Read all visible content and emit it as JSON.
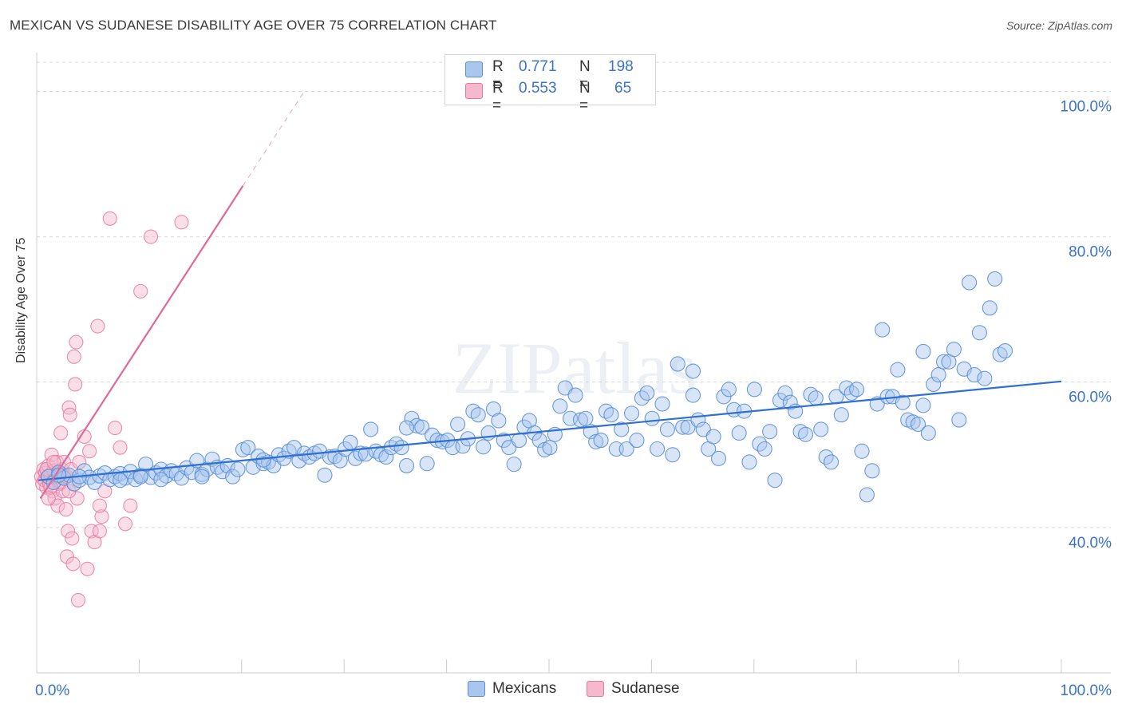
{
  "title": "MEXICAN VS SUDANESE DISABILITY AGE OVER 75 CORRELATION CHART",
  "source": "Source: ZipAtlas.com",
  "colors": {
    "blue": "#5b8fd6",
    "blue_fill": "#a9c6ee",
    "blue_line": "#2f6fd0",
    "pink": "#e879a2",
    "pink_fill": "#f5b8cd",
    "pink_line": "#e0689a",
    "axis_text": "#3b73c8",
    "grid": "#d9d9d9"
  },
  "legend": {
    "rows": [
      {
        "r_label": "R =",
        "r_value": "0.771",
        "n_label": "N =",
        "n_value": "198"
      },
      {
        "r_label": "R =",
        "r_value": "0.553",
        "n_label": "N =",
        "n_value": "65"
      }
    ]
  },
  "bottom_legend": [
    "Mexicans",
    "Sudanese"
  ],
  "watermark": "ZIPatlas",
  "chart_data": {
    "type": "scatter",
    "title": "MEXICAN VS SUDANESE DISABILITY AGE OVER 75 CORRELATION CHART",
    "xlabel": "",
    "ylabel": "Disability Age Over 75",
    "xlim": [
      0,
      1
    ],
    "ylim": [
      0.2,
      1.04
    ],
    "x_tick_labels": [
      "0.0%",
      "100.0%"
    ],
    "y_ticks": [
      0.4,
      0.6,
      0.8,
      1.0
    ],
    "y_tick_labels": [
      "40.0%",
      "60.0%",
      "80.0%",
      "100.0%"
    ],
    "grid": true,
    "series": [
      {
        "name": "Mexicans",
        "r": 0.771,
        "n": 198,
        "trend": {
          "x": [
            0.0,
            1.0
          ],
          "y": [
            0.465,
            0.601
          ]
        },
        "points": [
          [
            0.01,
            0.47
          ],
          [
            0.015,
            0.462
          ],
          [
            0.02,
            0.476
          ],
          [
            0.025,
            0.468
          ],
          [
            0.03,
            0.472
          ],
          [
            0.035,
            0.46
          ],
          [
            0.04,
            0.465
          ],
          [
            0.045,
            0.478
          ],
          [
            0.05,
            0.469
          ],
          [
            0.055,
            0.462
          ],
          [
            0.06,
            0.471
          ],
          [
            0.065,
            0.475
          ],
          [
            0.07,
            0.466
          ],
          [
            0.075,
            0.47
          ],
          [
            0.08,
            0.474
          ],
          [
            0.085,
            0.468
          ],
          [
            0.09,
            0.477
          ],
          [
            0.095,
            0.466
          ],
          [
            0.1,
            0.472
          ],
          [
            0.105,
            0.487
          ],
          [
            0.11,
            0.469
          ],
          [
            0.115,
            0.475
          ],
          [
            0.12,
            0.48
          ],
          [
            0.125,
            0.471
          ],
          [
            0.13,
            0.478
          ],
          [
            0.135,
            0.474
          ],
          [
            0.14,
            0.468
          ],
          [
            0.145,
            0.482
          ],
          [
            0.15,
            0.476
          ],
          [
            0.155,
            0.492
          ],
          [
            0.16,
            0.473
          ],
          [
            0.165,
            0.48
          ],
          [
            0.17,
            0.494
          ],
          [
            0.175,
            0.483
          ],
          [
            0.18,
            0.477
          ],
          [
            0.185,
            0.485
          ],
          [
            0.19,
            0.47
          ],
          [
            0.195,
            0.48
          ],
          [
            0.2,
            0.507
          ],
          [
            0.205,
            0.51
          ],
          [
            0.21,
            0.483
          ],
          [
            0.215,
            0.498
          ],
          [
            0.22,
            0.488
          ],
          [
            0.225,
            0.49
          ],
          [
            0.23,
            0.485
          ],
          [
            0.235,
            0.5
          ],
          [
            0.24,
            0.495
          ],
          [
            0.245,
            0.505
          ],
          [
            0.25,
            0.51
          ],
          [
            0.255,
            0.492
          ],
          [
            0.26,
            0.502
          ],
          [
            0.265,
            0.497
          ],
          [
            0.27,
            0.502
          ],
          [
            0.275,
            0.505
          ],
          [
            0.28,
            0.472
          ],
          [
            0.285,
            0.497
          ],
          [
            0.29,
            0.498
          ],
          [
            0.295,
            0.492
          ],
          [
            0.3,
            0.508
          ],
          [
            0.305,
            0.517
          ],
          [
            0.31,
            0.495
          ],
          [
            0.315,
            0.502
          ],
          [
            0.32,
            0.501
          ],
          [
            0.325,
            0.535
          ],
          [
            0.33,
            0.505
          ],
          [
            0.335,
            0.5
          ],
          [
            0.34,
            0.497
          ],
          [
            0.345,
            0.51
          ],
          [
            0.35,
            0.515
          ],
          [
            0.355,
            0.51
          ],
          [
            0.36,
            0.485
          ],
          [
            0.365,
            0.55
          ],
          [
            0.37,
            0.54
          ],
          [
            0.375,
            0.538
          ],
          [
            0.38,
            0.488
          ],
          [
            0.385,
            0.527
          ],
          [
            0.39,
            0.52
          ],
          [
            0.395,
            0.518
          ],
          [
            0.4,
            0.52
          ],
          [
            0.405,
            0.51
          ],
          [
            0.41,
            0.542
          ],
          [
            0.415,
            0.512
          ],
          [
            0.42,
            0.522
          ],
          [
            0.425,
            0.56
          ],
          [
            0.43,
            0.555
          ],
          [
            0.435,
            0.511
          ],
          [
            0.44,
            0.53
          ],
          [
            0.445,
            0.563
          ],
          [
            0.45,
            0.547
          ],
          [
            0.455,
            0.52
          ],
          [
            0.46,
            0.51
          ],
          [
            0.465,
            0.487
          ],
          [
            0.47,
            0.52
          ],
          [
            0.475,
            0.538
          ],
          [
            0.48,
            0.547
          ],
          [
            0.485,
            0.53
          ],
          [
            0.49,
            0.52
          ],
          [
            0.495,
            0.507
          ],
          [
            0.5,
            0.51
          ],
          [
            0.505,
            0.528
          ],
          [
            0.51,
            0.567
          ],
          [
            0.515,
            0.592
          ],
          [
            0.52,
            0.55
          ],
          [
            0.525,
            0.582
          ],
          [
            0.53,
            0.548
          ],
          [
            0.535,
            0.55
          ],
          [
            0.54,
            0.532
          ],
          [
            0.545,
            0.518
          ],
          [
            0.55,
            0.52
          ],
          [
            0.555,
            0.56
          ],
          [
            0.56,
            0.555
          ],
          [
            0.565,
            0.508
          ],
          [
            0.57,
            0.535
          ],
          [
            0.575,
            0.508
          ],
          [
            0.58,
            0.557
          ],
          [
            0.585,
            0.52
          ],
          [
            0.59,
            0.578
          ],
          [
            0.595,
            0.585
          ],
          [
            0.6,
            0.55
          ],
          [
            0.605,
            0.508
          ],
          [
            0.61,
            0.57
          ],
          [
            0.615,
            0.535
          ],
          [
            0.62,
            0.5
          ],
          [
            0.625,
            0.625
          ],
          [
            0.63,
            0.538
          ],
          [
            0.635,
            0.538
          ],
          [
            0.64,
            0.615
          ],
          [
            0.645,
            0.548
          ],
          [
            0.65,
            0.535
          ],
          [
            0.655,
            0.508
          ],
          [
            0.66,
            0.525
          ],
          [
            0.665,
            0.495
          ],
          [
            0.67,
            0.58
          ],
          [
            0.675,
            0.59
          ],
          [
            0.68,
            0.562
          ],
          [
            0.685,
            0.53
          ],
          [
            0.69,
            0.56
          ],
          [
            0.695,
            0.49
          ],
          [
            0.7,
            0.59
          ],
          [
            0.705,
            0.515
          ],
          [
            0.71,
            0.508
          ],
          [
            0.715,
            0.532
          ],
          [
            0.72,
            0.465
          ],
          [
            0.725,
            0.575
          ],
          [
            0.73,
            0.585
          ],
          [
            0.735,
            0.572
          ],
          [
            0.74,
            0.56
          ],
          [
            0.745,
            0.532
          ],
          [
            0.75,
            0.528
          ],
          [
            0.755,
            0.583
          ],
          [
            0.76,
            0.578
          ],
          [
            0.765,
            0.535
          ],
          [
            0.77,
            0.497
          ],
          [
            0.775,
            0.49
          ],
          [
            0.78,
            0.58
          ],
          [
            0.785,
            0.555
          ],
          [
            0.79,
            0.592
          ],
          [
            0.795,
            0.585
          ],
          [
            0.8,
            0.59
          ],
          [
            0.805,
            0.505
          ],
          [
            0.81,
            0.445
          ],
          [
            0.815,
            0.478
          ],
          [
            0.82,
            0.57
          ],
          [
            0.825,
            0.672
          ],
          [
            0.83,
            0.58
          ],
          [
            0.835,
            0.58
          ],
          [
            0.84,
            0.617
          ],
          [
            0.845,
            0.572
          ],
          [
            0.85,
            0.548
          ],
          [
            0.855,
            0.545
          ],
          [
            0.86,
            0.542
          ],
          [
            0.865,
            0.642
          ],
          [
            0.87,
            0.53
          ],
          [
            0.875,
            0.597
          ],
          [
            0.88,
            0.61
          ],
          [
            0.885,
            0.628
          ],
          [
            0.89,
            0.628
          ],
          [
            0.895,
            0.645
          ],
          [
            0.9,
            0.548
          ],
          [
            0.905,
            0.618
          ],
          [
            0.91,
            0.737
          ],
          [
            0.915,
            0.61
          ],
          [
            0.92,
            0.668
          ],
          [
            0.925,
            0.605
          ],
          [
            0.93,
            0.702
          ],
          [
            0.935,
            0.742
          ],
          [
            0.94,
            0.638
          ],
          [
            0.945,
            0.643
          ],
          [
            0.865,
            0.568
          ],
          [
            0.64,
            0.582
          ],
          [
            0.36,
            0.537
          ],
          [
            0.22,
            0.493
          ],
          [
            0.16,
            0.47
          ],
          [
            0.12,
            0.466
          ],
          [
            0.08,
            0.465
          ],
          [
            0.04,
            0.47
          ],
          [
            0.02,
            0.472
          ],
          [
            0.1,
            0.47
          ]
        ]
      },
      {
        "name": "Sudanese",
        "r": 0.553,
        "n": 65,
        "trend": {
          "x": [
            0.002,
            0.2
          ],
          "y": [
            0.44,
            0.87
          ]
        },
        "trend_dashed": {
          "x": [
            0.2,
            0.26
          ],
          "y": [
            0.87,
            1.0
          ]
        },
        "points": [
          [
            0.003,
            0.47
          ],
          [
            0.004,
            0.46
          ],
          [
            0.005,
            0.48
          ],
          [
            0.006,
            0.465
          ],
          [
            0.007,
            0.475
          ],
          [
            0.008,
            0.455
          ],
          [
            0.009,
            0.47
          ],
          [
            0.01,
            0.485
          ],
          [
            0.011,
            0.46
          ],
          [
            0.012,
            0.472
          ],
          [
            0.013,
            0.5
          ],
          [
            0.014,
            0.45
          ],
          [
            0.015,
            0.478
          ],
          [
            0.016,
            0.44
          ],
          [
            0.017,
            0.468
          ],
          [
            0.018,
            0.49
          ],
          [
            0.019,
            0.43
          ],
          [
            0.02,
            0.475
          ],
          [
            0.021,
            0.46
          ],
          [
            0.022,
            0.53
          ],
          [
            0.023,
            0.48
          ],
          [
            0.024,
            0.45
          ],
          [
            0.025,
            0.49
          ],
          [
            0.026,
            0.47
          ],
          [
            0.027,
            0.425
          ],
          [
            0.028,
            0.36
          ],
          [
            0.029,
            0.395
          ],
          [
            0.03,
            0.565
          ],
          [
            0.031,
            0.555
          ],
          [
            0.032,
            0.48
          ],
          [
            0.033,
            0.385
          ],
          [
            0.034,
            0.35
          ],
          [
            0.035,
            0.635
          ],
          [
            0.036,
            0.597
          ],
          [
            0.037,
            0.655
          ],
          [
            0.038,
            0.44
          ],
          [
            0.039,
            0.3
          ],
          [
            0.04,
            0.49
          ],
          [
            0.045,
            0.525
          ],
          [
            0.048,
            0.343
          ],
          [
            0.05,
            0.505
          ],
          [
            0.052,
            0.395
          ],
          [
            0.055,
            0.38
          ],
          [
            0.058,
            0.677
          ],
          [
            0.06,
            0.395
          ],
          [
            0.062,
            0.415
          ],
          [
            0.065,
            0.45
          ],
          [
            0.07,
            0.825
          ],
          [
            0.075,
            0.537
          ],
          [
            0.08,
            0.51
          ],
          [
            0.085,
            0.405
          ],
          [
            0.09,
            0.43
          ],
          [
            0.1,
            0.725
          ],
          [
            0.11,
            0.8
          ],
          [
            0.14,
            0.82
          ],
          [
            0.018,
            0.47
          ],
          [
            0.022,
            0.462
          ],
          [
            0.008,
            0.48
          ],
          [
            0.012,
            0.455
          ],
          [
            0.028,
            0.47
          ],
          [
            0.015,
            0.49
          ],
          [
            0.01,
            0.44
          ],
          [
            0.03,
            0.45
          ],
          [
            0.035,
            0.46
          ],
          [
            0.06,
            0.43
          ]
        ]
      }
    ]
  }
}
